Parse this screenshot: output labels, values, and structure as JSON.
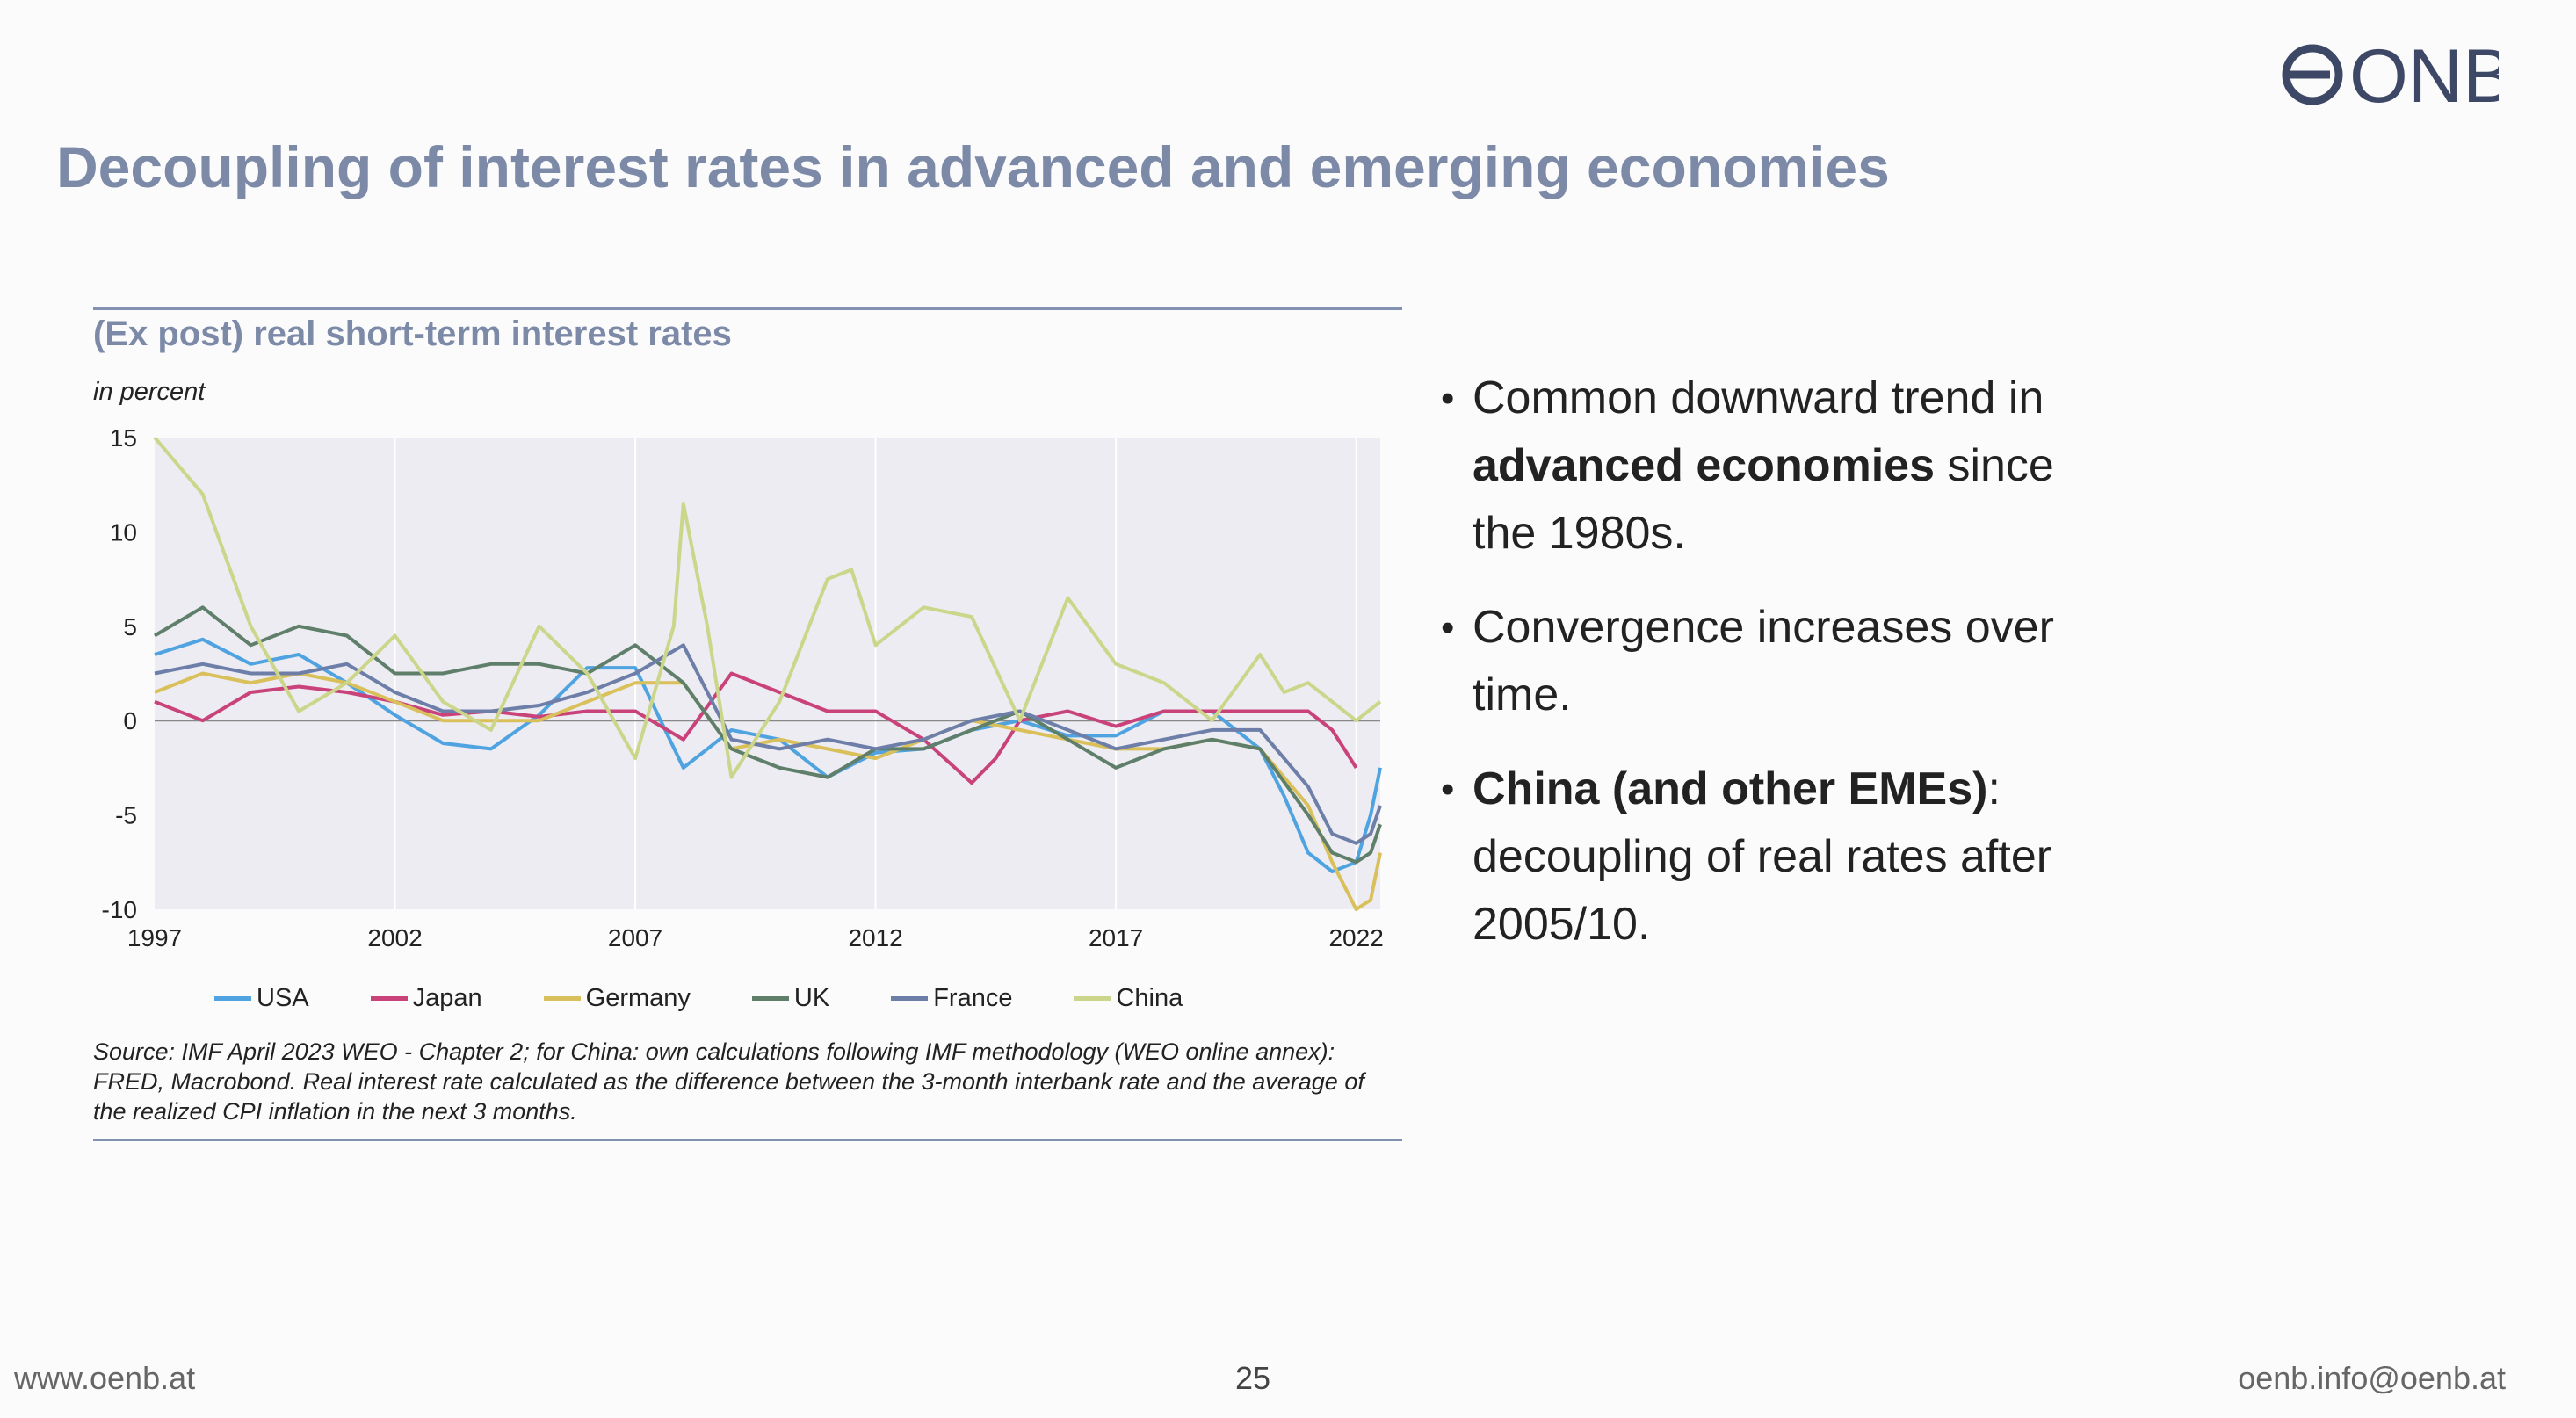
{
  "slide": {
    "title": "Decoupling of interest rates in advanced and emerging economies",
    "logo_text": "ONB",
    "footer_left": "www.oenb.at",
    "page_number": "25",
    "footer_right": "oenb.info@oenb.at"
  },
  "chart_panel": {
    "title": "(Ex post) real short-term interest rates",
    "unit": "in percent",
    "source": "Source: IMF April 2023 WEO - Chapter 2; for China: own calculations following IMF methodology (WEO online annex): FRED, Macrobond. Real interest rate calculated as the difference between the 3-month interbank rate and the average of the realized CPI inflation in the next 3 months."
  },
  "bullets": [
    {
      "parts": [
        {
          "text": "Common downward trend in ",
          "bold": false
        },
        {
          "text": "advanced economies",
          "bold": true
        },
        {
          "text": " since the 1980s.",
          "bold": false
        }
      ]
    },
    {
      "parts": [
        {
          "text": "Convergence increases over time.",
          "bold": false
        }
      ]
    },
    {
      "parts": [
        {
          "text": "China (and other EMEs)",
          "bold": true
        },
        {
          "text": ": decoupling of real rates after 2005/10.",
          "bold": false
        }
      ]
    }
  ],
  "chart_data": {
    "type": "line",
    "title": "(Ex post) real short-term interest rates",
    "ylabel": "in percent",
    "xlabel": "",
    "xlim": [
      1997,
      2022.5
    ],
    "ylim": [
      -10,
      15
    ],
    "x_ticks": [
      "1997",
      "2002",
      "2007",
      "2012",
      "2017",
      "2022"
    ],
    "y_ticks": [
      "15",
      "10",
      "5",
      "0",
      "-5",
      "-10"
    ],
    "grid": "vertical",
    "legend": "bottom",
    "series": [
      {
        "name": "USA",
        "color": "#4fa3e0",
        "x": [
          1997,
          1998,
          1999,
          2000,
          2001,
          2002,
          2003,
          2004,
          2005,
          2006,
          2007,
          2008,
          2009,
          2010,
          2011,
          2012,
          2013,
          2014,
          2015,
          2016,
          2017,
          2018,
          2019,
          2020,
          2020.5,
          2021,
          2021.5,
          2022,
          2022.3,
          2022.5
        ],
        "values": [
          3.5,
          4.3,
          3.0,
          3.5,
          2.0,
          0.3,
          -1.2,
          -1.5,
          0.3,
          2.8,
          2.8,
          -2.5,
          -0.5,
          -1.0,
          -3.0,
          -1.7,
          -1.5,
          -0.5,
          0.0,
          -0.8,
          -0.8,
          0.5,
          0.5,
          -1.5,
          -4.0,
          -7.0,
          -8.0,
          -7.5,
          -5.0,
          -2.5
        ]
      },
      {
        "name": "Japan",
        "color": "#c9437a",
        "x": [
          1997,
          1998,
          1999,
          2000,
          2001,
          2002,
          2003,
          2004,
          2005,
          2006,
          2007,
          2008,
          2009,
          2010,
          2011,
          2012,
          2013,
          2014,
          2014.5,
          2015,
          2016,
          2017,
          2018,
          2019,
          2020,
          2021,
          2021.5,
          2022
        ],
        "values": [
          1.0,
          0.0,
          1.5,
          1.8,
          1.5,
          1.0,
          0.3,
          0.5,
          0.2,
          0.5,
          0.5,
          -1.0,
          2.5,
          1.5,
          0.5,
          0.5,
          -1.0,
          -3.3,
          -2.0,
          0.0,
          0.5,
          -0.3,
          0.5,
          0.5,
          0.5,
          0.5,
          -0.5,
          -2.5
        ]
      },
      {
        "name": "Germany",
        "color": "#d9c05a",
        "x": [
          1997,
          1998,
          1999,
          2000,
          2001,
          2002,
          2003,
          2004,
          2005,
          2006,
          2007,
          2008,
          2009,
          2010,
          2011,
          2012,
          2013,
          2014,
          2015,
          2016,
          2017,
          2018,
          2019,
          2020,
          2021,
          2021.5,
          2022,
          2022.3,
          2022.5
        ],
        "values": [
          1.5,
          2.5,
          2.0,
          2.5,
          2.0,
          1.0,
          0.0,
          0.0,
          0.0,
          1.0,
          2.0,
          2.0,
          -1.5,
          -1.0,
          -1.5,
          -2.0,
          -1.0,
          0.0,
          -0.5,
          -1.0,
          -1.5,
          -1.5,
          -1.0,
          -1.5,
          -4.5,
          -7.5,
          -10.0,
          -9.5,
          -7.0
        ]
      },
      {
        "name": "UK",
        "color": "#5f7f6a",
        "x": [
          1997,
          1998,
          1999,
          2000,
          2001,
          2002,
          2003,
          2004,
          2005,
          2006,
          2007,
          2008,
          2009,
          2010,
          2011,
          2012,
          2013,
          2014,
          2015,
          2016,
          2017,
          2018,
          2019,
          2020,
          2021,
          2021.5,
          2022,
          2022.3,
          2022.5
        ],
        "values": [
          4.5,
          6.0,
          4.0,
          5.0,
          4.5,
          2.5,
          2.5,
          3.0,
          3.0,
          2.5,
          4.0,
          2.0,
          -1.5,
          -2.5,
          -3.0,
          -1.5,
          -1.5,
          -0.5,
          0.5,
          -1.0,
          -2.5,
          -1.5,
          -1.0,
          -1.5,
          -5.0,
          -7.0,
          -7.5,
          -7.0,
          -5.5
        ]
      },
      {
        "name": "France",
        "color": "#6d7ea8",
        "x": [
          1997,
          1998,
          1999,
          2000,
          2001,
          2002,
          2003,
          2004,
          2005,
          2006,
          2007,
          2008,
          2009,
          2010,
          2011,
          2012,
          2013,
          2014,
          2015,
          2016,
          2017,
          2018,
          2019,
          2020,
          2021,
          2021.5,
          2022,
          2022.3,
          2022.5
        ],
        "values": [
          2.5,
          3.0,
          2.5,
          2.5,
          3.0,
          1.5,
          0.5,
          0.5,
          0.8,
          1.5,
          2.5,
          4.0,
          -1.0,
          -1.5,
          -1.0,
          -1.5,
          -1.0,
          0.0,
          0.5,
          -0.5,
          -1.5,
          -1.0,
          -0.5,
          -0.5,
          -3.5,
          -6.0,
          -6.5,
          -6.0,
          -4.5
        ]
      },
      {
        "name": "China",
        "color": "#ccd68a",
        "x": [
          1997,
          1998,
          1999,
          2000,
          2001,
          2002,
          2003,
          2004,
          2005,
          2006,
          2007,
          2007.8,
          2008,
          2008.5,
          2009,
          2009.5,
          2010,
          2011,
          2011.5,
          2012,
          2013,
          2014,
          2015,
          2016,
          2017,
          2018,
          2019,
          2020,
          2020.5,
          2021,
          2022,
          2022.5
        ],
        "values": [
          15.0,
          12.0,
          5.0,
          0.5,
          2.0,
          4.5,
          1.0,
          -0.5,
          5.0,
          2.5,
          -2.0,
          5.0,
          11.5,
          5.0,
          -3.0,
          -1.0,
          1.0,
          7.5,
          8.0,
          4.0,
          6.0,
          5.5,
          0.0,
          6.5,
          3.0,
          2.0,
          0.0,
          3.5,
          1.5,
          2.0,
          0.0,
          1.0
        ]
      }
    ]
  }
}
